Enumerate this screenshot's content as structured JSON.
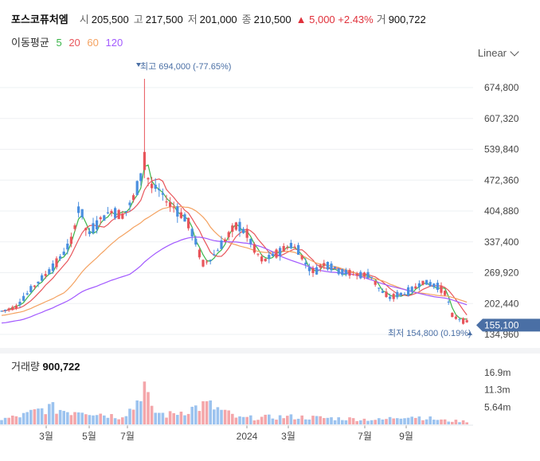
{
  "header": {
    "stock_name": "포스코퓨처엠",
    "open_label": "시",
    "open_value": "205,500",
    "high_label": "고",
    "high_value": "217,500",
    "low_label": "저",
    "low_value": "201,000",
    "close_label": "종",
    "close_value": "210,500",
    "change": "▲ 5,000 +2.43%",
    "volume_label": "거",
    "volume_value": "900,722"
  },
  "moving_average": {
    "label": "이동평균",
    "periods": [
      "5",
      "20",
      "60",
      "120"
    ],
    "colors": [
      "#3bb54a",
      "#e8555b",
      "#f4a261",
      "#a259ff"
    ]
  },
  "scale_selector": {
    "label": "Linear"
  },
  "price_axis": {
    "ticks": [
      "674,800",
      "607,320",
      "539,840",
      "472,360",
      "404,880",
      "337,400",
      "269,920",
      "202,440",
      "134,960"
    ],
    "current_price": "155,100"
  },
  "annotations": {
    "high": "최고 694,000 (-77.65%)",
    "low": "최저 154,800 (0.19%)"
  },
  "time_axis": {
    "ticks": [
      "3월",
      "5월",
      "7월",
      "2024",
      "3월",
      "7월",
      "9월"
    ]
  },
  "volume": {
    "title_label": "거래량",
    "title_value": "900,722",
    "ticks": [
      "16.9m",
      "11.3m",
      "5.64m"
    ]
  },
  "colors": {
    "up": "#e8555b",
    "down": "#4a8fe0",
    "current_badge": "#4a6fa5"
  },
  "chart_data": {
    "type": "candlestick",
    "y_range": [
      134960,
      674800
    ],
    "ma_periods": [
      5,
      20,
      60,
      120
    ],
    "close_anchor_points": [
      [
        0,
        185000
      ],
      [
        20,
        195000
      ],
      [
        40,
        235000
      ],
      [
        60,
        270000
      ],
      [
        75,
        300000
      ],
      [
        90,
        340000
      ],
      [
        100,
        420000
      ],
      [
        110,
        350000
      ],
      [
        125,
        385000
      ],
      [
        140,
        405000
      ],
      [
        155,
        395000
      ],
      [
        170,
        440000
      ],
      [
        180,
        500000
      ],
      [
        190,
        460000
      ],
      [
        200,
        450000
      ],
      [
        210,
        425000
      ],
      [
        220,
        410000
      ],
      [
        235,
        385000
      ],
      [
        245,
        340000
      ],
      [
        255,
        290000
      ],
      [
        265,
        300000
      ],
      [
        280,
        335000
      ],
      [
        290,
        360000
      ],
      [
        298,
        375000
      ],
      [
        310,
        355000
      ],
      [
        320,
        320000
      ],
      [
        330,
        295000
      ],
      [
        340,
        305000
      ],
      [
        355,
        320000
      ],
      [
        365,
        330000
      ],
      [
        375,
        320000
      ],
      [
        385,
        285000
      ],
      [
        395,
        270000
      ],
      [
        405,
        290000
      ],
      [
        415,
        285000
      ],
      [
        425,
        275000
      ],
      [
        435,
        270000
      ],
      [
        450,
        265000
      ],
      [
        465,
        265000
      ],
      [
        478,
        230000
      ],
      [
        490,
        215000
      ],
      [
        500,
        222000
      ],
      [
        510,
        225000
      ],
      [
        520,
        235000
      ],
      [
        530,
        250000
      ],
      [
        540,
        245000
      ],
      [
        550,
        240000
      ],
      [
        560,
        225000
      ],
      [
        568,
        175000
      ],
      [
        575,
        170000
      ],
      [
        582,
        165000
      ],
      [
        590,
        160000
      ]
    ],
    "volume_anchor_points": [
      [
        0,
        1.5
      ],
      [
        30,
        3.0
      ],
      [
        60,
        5.5
      ],
      [
        90,
        4.2
      ],
      [
        100,
        5.0
      ],
      [
        120,
        3.8
      ],
      [
        150,
        2.5
      ],
      [
        170,
        6.0
      ],
      [
        180,
        14.0
      ],
      [
        190,
        4.5
      ],
      [
        210,
        3.0
      ],
      [
        260,
        6.5
      ],
      [
        300,
        2.0
      ],
      [
        360,
        2.5
      ],
      [
        420,
        2.0
      ],
      [
        480,
        1.5
      ],
      [
        510,
        3.0
      ],
      [
        560,
        1.2
      ],
      [
        590,
        1.0
      ]
    ],
    "volume_range_m": [
      0,
      19
    ]
  }
}
